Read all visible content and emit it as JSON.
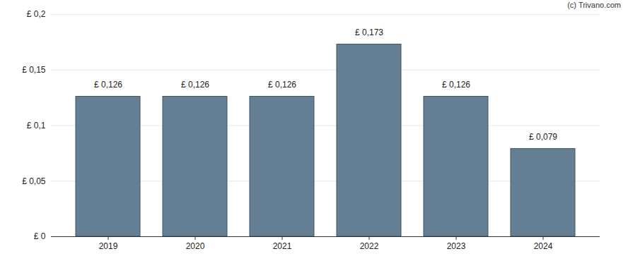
{
  "chart_data": {
    "type": "bar",
    "annotations": [
      "(c) Trivano.com"
    ],
    "categories": [
      "2019",
      "2020",
      "2021",
      "2022",
      "2023",
      "2024"
    ],
    "values": [
      0.126,
      0.126,
      0.126,
      0.173,
      0.126,
      0.079
    ],
    "value_labels": [
      "£ 0,126",
      "£ 0,126",
      "£ 0,126",
      "£ 0,173",
      "£ 0,126",
      "£ 0,079"
    ],
    "data_labels": true,
    "color": "#647f94",
    "ylim": [
      0,
      0.2
    ],
    "yticks": [
      {
        "value": 0,
        "label": "£ 0"
      },
      {
        "value": 0.05,
        "label": "£ 0,05"
      },
      {
        "value": 0.1,
        "label": "£ 0,1"
      },
      {
        "value": 0.15,
        "label": "£ 0,15"
      },
      {
        "value": 0.2,
        "label": "£ 0,2"
      }
    ],
    "grid": true
  }
}
